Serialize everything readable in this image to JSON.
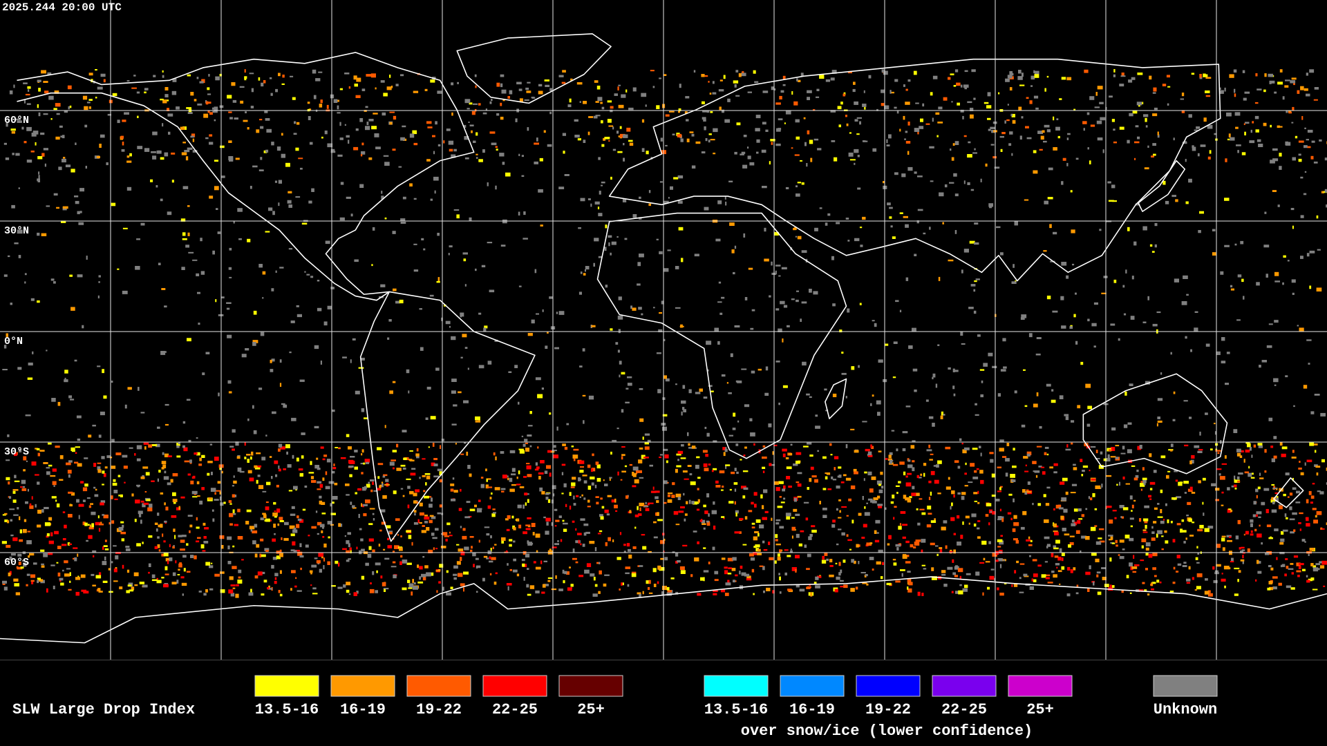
{
  "header": {
    "timestamp": "2025.244 20:00 UTC"
  },
  "map": {
    "latitude_labels": [
      "60°N",
      "30°N",
      "0°N",
      "30°S",
      "60°S"
    ]
  },
  "legend": {
    "title": "SLW Large Drop Index",
    "groups": [
      {
        "items": [
          {
            "label": "13.5-16",
            "color": "#ffff00"
          },
          {
            "label": "16-19",
            "color": "#ff9900"
          },
          {
            "label": "19-22",
            "color": "#ff5a00"
          },
          {
            "label": "22-25",
            "color": "#ff0000"
          },
          {
            "label": "25+",
            "color": "#660000"
          }
        ]
      },
      {
        "items": [
          {
            "label": "13.5-16",
            "color": "#00ffff"
          },
          {
            "label": "16-19",
            "color": "#0088ff"
          },
          {
            "label": "19-22",
            "color": "#0000ff"
          },
          {
            "label": "22-25",
            "color": "#7a00ee"
          },
          {
            "label": "25+",
            "color": "#cc00cc"
          }
        ],
        "caption": "over snow/ice (lower confidence)"
      },
      {
        "items": [
          {
            "label": "Unknown",
            "color": "#808080"
          }
        ]
      }
    ]
  }
}
